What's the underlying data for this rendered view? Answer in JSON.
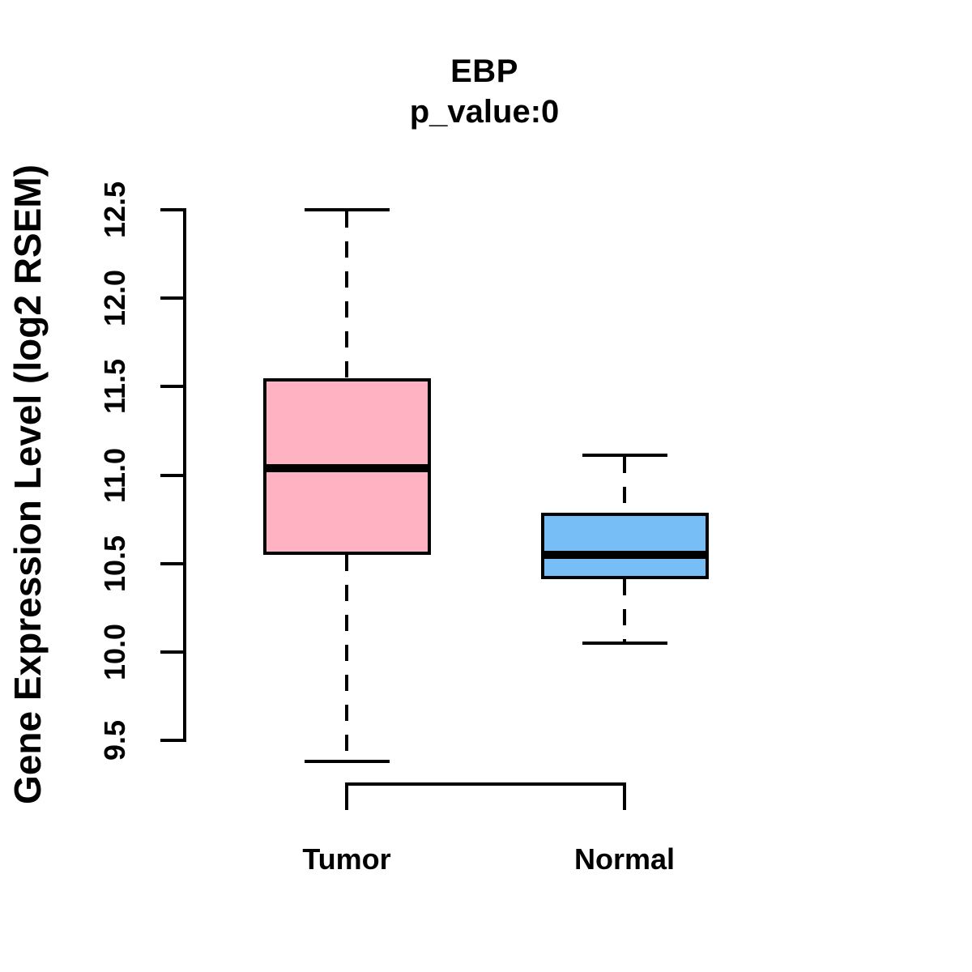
{
  "chart_data": {
    "type": "boxplot",
    "title": "EBP",
    "subtitle": "p_value:0",
    "ylabel": "Gene Expression Level (log2 RSEM)",
    "xlabel": "",
    "categories": [
      "Tumor",
      "Normal"
    ],
    "series": [
      {
        "name": "Tumor",
        "fill_color": "#FFB2C1",
        "whisker_low": 9.38,
        "q1": 10.56,
        "median": 11.04,
        "q3": 11.54,
        "whisker_high": 12.5
      },
      {
        "name": "Normal",
        "fill_color": "#76BEF5",
        "whisker_low": 10.05,
        "q1": 10.42,
        "median": 10.55,
        "q3": 10.78,
        "whisker_high": 11.11
      }
    ],
    "y_axis": {
      "tick_labels": [
        "9.5",
        "10.0",
        "10.5",
        "11.0",
        "11.5",
        "12.0",
        "12.5"
      ],
      "tick_values": [
        9.5,
        10.0,
        10.5,
        11.0,
        11.5,
        12.0,
        12.5
      ],
      "top_value": 12.5,
      "bottom_value": 9.5
    },
    "line_color": "#000000",
    "background_color": "#FFFFFF",
    "grid": false,
    "legend": false
  }
}
